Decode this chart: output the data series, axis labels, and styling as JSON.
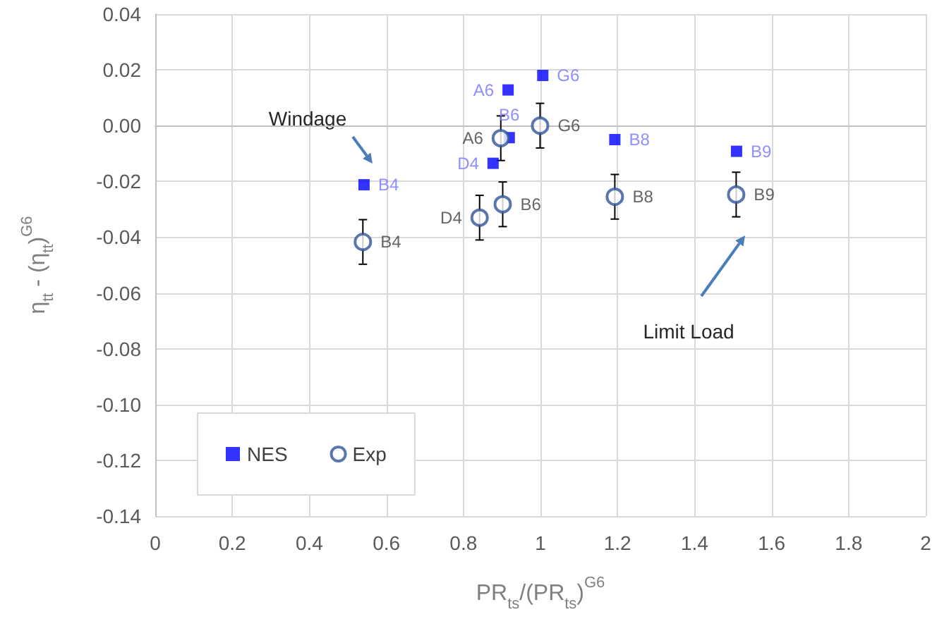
{
  "chart_data": {
    "type": "scatter",
    "xlabel": "PR$_{ts}$/(PR$_{ts}$)$^{G6}$",
    "ylabel": "η$_{tt}$ - (η$_{tt}$)$^{G6}$",
    "xlim": [
      0,
      2
    ],
    "xticks": [
      0,
      0.2,
      0.4,
      0.6,
      0.8,
      1,
      1.2,
      1.4,
      1.6,
      1.8,
      2
    ],
    "ylim": [
      -0.14,
      0.04
    ],
    "yticks": [
      {
        "value": -0.14,
        "label": "-0.14"
      },
      {
        "value": -0.12,
        "label": "-0.12"
      },
      {
        "value": -0.1,
        "label": "-0.10"
      },
      {
        "value": -0.08,
        "label": "-0.08"
      },
      {
        "value": -0.06,
        "label": "-0.06"
      },
      {
        "value": -0.04,
        "label": "-0.04"
      },
      {
        "value": -0.02,
        "label": "-0.02"
      },
      {
        "value": 0,
        "label": "0.00"
      },
      0.02,
      0.04
    ],
    "grid": true,
    "legend": "bottom left",
    "series": [
      {
        "name": "NES",
        "color": "#0000ff",
        "marker": "square",
        "x": [
          1.006,
          0.916,
          0.919,
          0.877,
          1.193,
          1.509,
          0.542
        ],
        "values": [
          0.018,
          0.0128,
          -0.0043,
          -0.0135,
          -0.005,
          -0.0092,
          -0.0212
        ],
        "value_labels": [
          "G6",
          "A6",
          "B6",
          "D4",
          "B8",
          "B9",
          "B4"
        ]
      },
      {
        "name": "Exp",
        "color": "#2f5597",
        "marker": "circle",
        "x": [
          0.999,
          0.897,
          0.902,
          0.842,
          1.193,
          1.508,
          0.539
        ],
        "values": [
          0,
          -0.0045,
          -0.0282,
          -0.033,
          -0.0255,
          -0.0247,
          -0.0417
        ],
        "errors": [
          0.008,
          0.008,
          0.008,
          0.008,
          0.008,
          0.008,
          0.008
        ],
        "value_labels": [
          "G6",
          "A6",
          "B6",
          "D4",
          "B8",
          "B9",
          "B4"
        ]
      }
    ],
    "annotations": [
      "Windage",
      "Limit Load"
    ]
  }
}
